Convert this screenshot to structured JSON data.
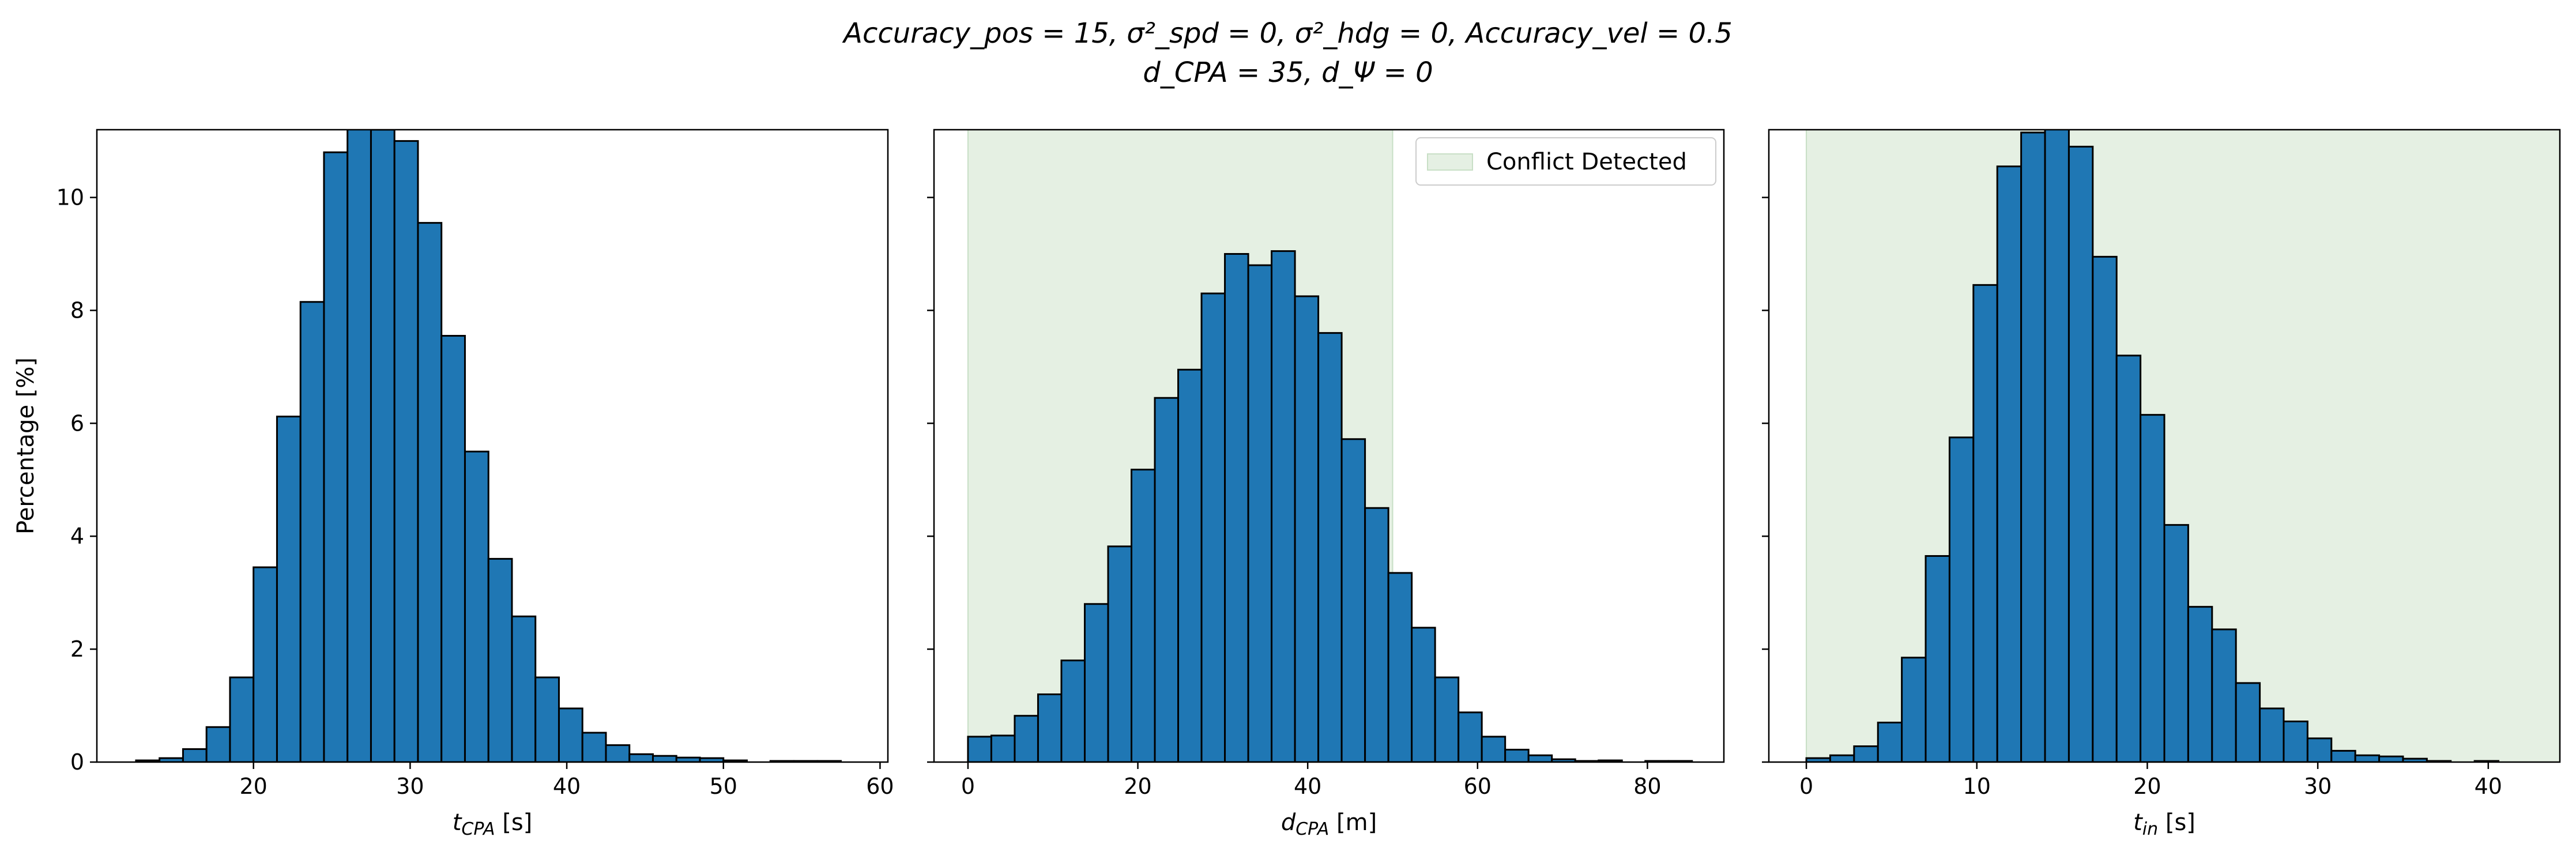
{
  "figure": {
    "title_line1": "Accuracy_pos = 15, σ²_spd = 0, σ²_hdg = 0, Accuracy_vel = 0.5",
    "title_line2": "d_CPA = 35, d_Ψ = 0"
  },
  "colors": {
    "bar_fill": "#1f77b4",
    "bar_edge": "#000000",
    "conflict_band": "#e5f0e3",
    "conflict_band_edge": "#c8dfc6"
  },
  "chart_data": [
    {
      "type": "bar",
      "title": "",
      "xlabel": "t_CPA [s]",
      "ylabel": "Percentage [%]",
      "xlim": [
        10,
        60.5
      ],
      "ylim": [
        0,
        11.2
      ],
      "xticks": [
        20,
        30,
        40,
        50,
        60
      ],
      "yticks": [
        0,
        2,
        4,
        6,
        8,
        10
      ],
      "bin_width": 1.5,
      "bins": [
        {
          "x0": 12.5,
          "value": 0.03
        },
        {
          "x0": 14.0,
          "value": 0.07
        },
        {
          "x0": 15.5,
          "value": 0.23
        },
        {
          "x0": 17.0,
          "value": 0.62
        },
        {
          "x0": 18.5,
          "value": 1.5
        },
        {
          "x0": 20.0,
          "value": 3.45
        },
        {
          "x0": 21.5,
          "value": 6.12
        },
        {
          "x0": 23.0,
          "value": 8.15
        },
        {
          "x0": 24.5,
          "value": 10.8
        },
        {
          "x0": 26.0,
          "value": 11.4
        },
        {
          "x0": 27.5,
          "value": 11.2
        },
        {
          "x0": 29.0,
          "value": 11.0
        },
        {
          "x0": 30.5,
          "value": 9.55
        },
        {
          "x0": 32.0,
          "value": 7.55
        },
        {
          "x0": 33.5,
          "value": 5.5
        },
        {
          "x0": 35.0,
          "value": 3.6
        },
        {
          "x0": 36.5,
          "value": 2.58
        },
        {
          "x0": 38.0,
          "value": 1.5
        },
        {
          "x0": 39.5,
          "value": 0.95
        },
        {
          "x0": 41.0,
          "value": 0.52
        },
        {
          "x0": 42.5,
          "value": 0.3
        },
        {
          "x0": 44.0,
          "value": 0.14
        },
        {
          "x0": 45.5,
          "value": 0.11
        },
        {
          "x0": 47.0,
          "value": 0.08
        },
        {
          "x0": 48.5,
          "value": 0.07
        },
        {
          "x0": 50.0,
          "value": 0.03
        },
        {
          "x0": 53.0,
          "value": 0.02
        },
        {
          "x0": 54.5,
          "value": 0.02
        },
        {
          "x0": 56.0,
          "value": 0.02
        }
      ]
    },
    {
      "type": "bar",
      "title": "",
      "xlabel": "d_CPA [m]",
      "ylabel": "",
      "xlim": [
        -4,
        89
      ],
      "ylim": [
        0,
        11.2
      ],
      "xticks": [
        0,
        20,
        40,
        60,
        80
      ],
      "yticks": [
        0,
        2,
        4,
        6,
        8,
        10
      ],
      "bin_width": 2.75,
      "shaded_region": {
        "x0": 0,
        "x1": 50,
        "label": "Conflict Detected"
      },
      "legend": {
        "placement": "upper right",
        "entries": [
          "Conflict Detected"
        ]
      },
      "bins": [
        {
          "x0": 0.0,
          "value": 0.45
        },
        {
          "x0": 2.75,
          "value": 0.47
        },
        {
          "x0": 5.5,
          "value": 0.82
        },
        {
          "x0": 8.25,
          "value": 1.2
        },
        {
          "x0": 11.0,
          "value": 1.8
        },
        {
          "x0": 13.75,
          "value": 2.8
        },
        {
          "x0": 16.5,
          "value": 3.82
        },
        {
          "x0": 19.25,
          "value": 5.18
        },
        {
          "x0": 22.0,
          "value": 6.45
        },
        {
          "x0": 24.75,
          "value": 6.95
        },
        {
          "x0": 27.5,
          "value": 8.3
        },
        {
          "x0": 30.25,
          "value": 9.0
        },
        {
          "x0": 33.0,
          "value": 8.8
        },
        {
          "x0": 35.75,
          "value": 9.05
        },
        {
          "x0": 38.5,
          "value": 8.25
        },
        {
          "x0": 41.25,
          "value": 7.6
        },
        {
          "x0": 44.0,
          "value": 5.72
        },
        {
          "x0": 46.75,
          "value": 4.5
        },
        {
          "x0": 49.5,
          "value": 3.35
        },
        {
          "x0": 52.25,
          "value": 2.38
        },
        {
          "x0": 55.0,
          "value": 1.5
        },
        {
          "x0": 57.75,
          "value": 0.88
        },
        {
          "x0": 60.5,
          "value": 0.45
        },
        {
          "x0": 63.25,
          "value": 0.22
        },
        {
          "x0": 66.0,
          "value": 0.12
        },
        {
          "x0": 68.75,
          "value": 0.05
        },
        {
          "x0": 71.5,
          "value": 0.02
        },
        {
          "x0": 74.25,
          "value": 0.03
        },
        {
          "x0": 79.75,
          "value": 0.02
        },
        {
          "x0": 82.5,
          "value": 0.02
        }
      ]
    },
    {
      "type": "bar",
      "title": "",
      "xlabel": "t_in [s]",
      "ylabel": "",
      "xlim": [
        -2.2,
        44.2
      ],
      "ylim": [
        0,
        11.2
      ],
      "xticks": [
        0,
        10,
        20,
        30,
        40
      ],
      "yticks": [
        0,
        2,
        4,
        6,
        8,
        10
      ],
      "bin_width": 1.4,
      "shaded_region": {
        "x0": 0,
        "x1": 44.2,
        "label": "Conflict Detected"
      },
      "bins": [
        {
          "x0": 0.0,
          "value": 0.07
        },
        {
          "x0": 1.4,
          "value": 0.12
        },
        {
          "x0": 2.8,
          "value": 0.28
        },
        {
          "x0": 4.2,
          "value": 0.7
        },
        {
          "x0": 5.6,
          "value": 1.85
        },
        {
          "x0": 7.0,
          "value": 3.65
        },
        {
          "x0": 8.4,
          "value": 5.75
        },
        {
          "x0": 9.8,
          "value": 8.45
        },
        {
          "x0": 11.2,
          "value": 10.55
        },
        {
          "x0": 12.6,
          "value": 11.15
        },
        {
          "x0": 14.0,
          "value": 11.35
        },
        {
          "x0": 15.4,
          "value": 10.9
        },
        {
          "x0": 16.8,
          "value": 8.95
        },
        {
          "x0": 18.2,
          "value": 7.2
        },
        {
          "x0": 19.6,
          "value": 6.15
        },
        {
          "x0": 21.0,
          "value": 4.2
        },
        {
          "x0": 22.4,
          "value": 2.75
        },
        {
          "x0": 23.8,
          "value": 2.35
        },
        {
          "x0": 25.2,
          "value": 1.4
        },
        {
          "x0": 26.6,
          "value": 0.95
        },
        {
          "x0": 28.0,
          "value": 0.72
        },
        {
          "x0": 29.4,
          "value": 0.42
        },
        {
          "x0": 30.8,
          "value": 0.2
        },
        {
          "x0": 32.2,
          "value": 0.12
        },
        {
          "x0": 33.6,
          "value": 0.1
        },
        {
          "x0": 35.0,
          "value": 0.06
        },
        {
          "x0": 36.4,
          "value": 0.02
        },
        {
          "x0": 39.2,
          "value": 0.02
        }
      ]
    }
  ]
}
